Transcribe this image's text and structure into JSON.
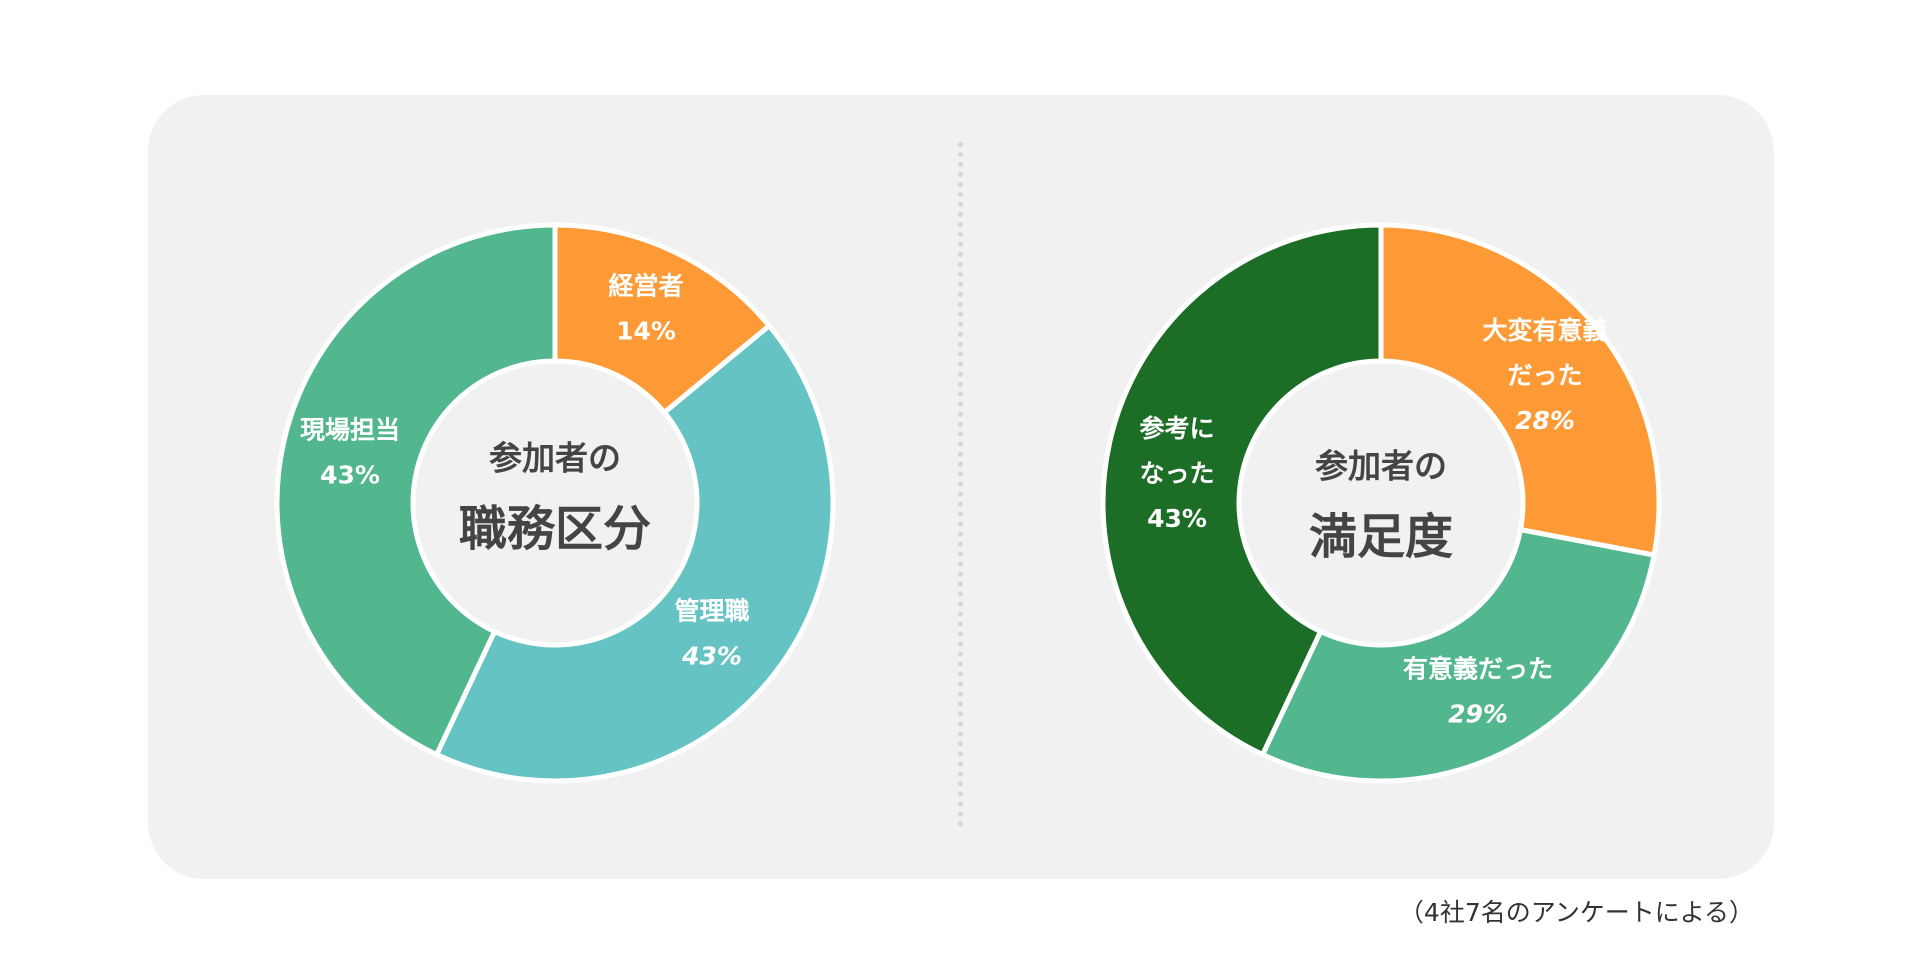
{
  "note": "（4社7名のアンケートによる）",
  "colors": {
    "orange": "#FD9A35",
    "teal": "#66C3C4",
    "green": "#52B68E",
    "dark_green": "#1C6D26",
    "panel": "#F1F1F1",
    "center_text": "#444444",
    "separator": "#FFFFFF"
  },
  "chart_data": [
    {
      "type": "pie",
      "variant": "donut",
      "center_title_small": "参加者の",
      "center_title_large": "職務区分",
      "slices": [
        {
          "label": "経営者",
          "value": 14,
          "value_label": "14%",
          "color": "#FD9A35",
          "italic_value": false
        },
        {
          "label": "管理職",
          "value": 43,
          "value_label": "43%",
          "color": "#66C3C4",
          "italic_value": true
        },
        {
          "label": "現場担当",
          "value": 43,
          "value_label": "43%",
          "color": "#52B68E",
          "italic_value": false
        }
      ]
    },
    {
      "type": "pie",
      "variant": "donut",
      "center_title_small": "参加者の",
      "center_title_large": "満足度",
      "slices": [
        {
          "label_lines": [
            "大変有意義",
            "だった"
          ],
          "value": 28,
          "value_label": "28%",
          "color": "#FD9A35",
          "italic_value": true
        },
        {
          "label_lines": [
            "有意義だった"
          ],
          "value": 29,
          "value_label": "29%",
          "color": "#52B68E",
          "italic_value": true
        },
        {
          "label_lines": [
            "参考に",
            "なった"
          ],
          "value": 43,
          "value_label": "43%",
          "color": "#1C6D26",
          "italic_value": false
        }
      ]
    }
  ]
}
